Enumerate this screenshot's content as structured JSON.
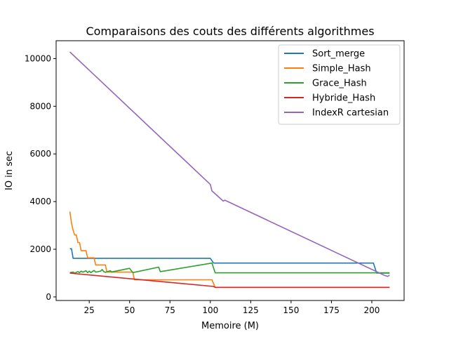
{
  "chart_data": {
    "type": "line",
    "title": "Comparaisons des couts des différents algorithmes",
    "xlabel": "Memoire (M)",
    "ylabel": "IO in sec",
    "xlim": [
      4.5,
      220
    ],
    "ylim": [
      -150,
      10750
    ],
    "xticks": [
      25,
      50,
      75,
      100,
      125,
      150,
      175,
      200
    ],
    "yticks": [
      0,
      2000,
      4000,
      6000,
      8000,
      10000
    ],
    "grid": false,
    "legend": "top-right",
    "series": [
      {
        "name": "Sort_merge",
        "color": "#1f77b4",
        "points": [
          [
            13,
            2020
          ],
          [
            14,
            2020
          ],
          [
            15,
            1620
          ],
          [
            100,
            1620
          ],
          [
            102,
            1420
          ],
          [
            201,
            1420
          ],
          [
            203,
            1000
          ],
          [
            211,
            1000
          ]
        ]
      },
      {
        "name": "Simple_Hash",
        "color": "#ff7f0e",
        "points": [
          [
            13,
            3580
          ],
          [
            14,
            3100
          ],
          [
            15,
            2800
          ],
          [
            16,
            2600
          ],
          [
            17,
            2600
          ],
          [
            18,
            2280
          ],
          [
            19,
            2280
          ],
          [
            20,
            1940
          ],
          [
            23,
            1940
          ],
          [
            24,
            1640
          ],
          [
            28,
            1640
          ],
          [
            29,
            1340
          ],
          [
            35,
            1340
          ],
          [
            36,
            1040
          ],
          [
            52,
            1040
          ],
          [
            53,
            720
          ],
          [
            101,
            720
          ],
          [
            103,
            400
          ],
          [
            211,
            400
          ]
        ]
      },
      {
        "name": "Grace_Hash",
        "color": "#2ca02c",
        "points": [
          [
            13,
            1020
          ],
          [
            15,
            1040
          ],
          [
            16,
            1000
          ],
          [
            18,
            1060
          ],
          [
            19,
            1020
          ],
          [
            20,
            1080
          ],
          [
            21,
            1040
          ],
          [
            23,
            1100
          ],
          [
            24,
            1020
          ],
          [
            25,
            1080
          ],
          [
            26,
            1020
          ],
          [
            28,
            1110
          ],
          [
            29,
            1040
          ],
          [
            32,
            1080
          ],
          [
            33,
            1150
          ],
          [
            34,
            1060
          ],
          [
            35,
            1030
          ],
          [
            38,
            1100
          ],
          [
            39,
            1050
          ],
          [
            50,
            1200
          ],
          [
            52,
            1020
          ],
          [
            68,
            1250
          ],
          [
            69,
            1060
          ],
          [
            101,
            1420
          ],
          [
            103,
            1010
          ],
          [
            211,
            1010
          ]
        ]
      },
      {
        "name": "Hybride_Hash",
        "color": "#d62728",
        "points": [
          [
            13,
            1000
          ],
          [
            102,
            440
          ],
          [
            103,
            400
          ],
          [
            211,
            400
          ]
        ]
      },
      {
        "name": "IndexR cartesian",
        "color": "#9467bd",
        "points": [
          [
            13,
            10280
          ],
          [
            100,
            4720
          ],
          [
            101,
            4450
          ],
          [
            108,
            4020
          ],
          [
            109,
            4060
          ],
          [
            208,
            900
          ],
          [
            210,
            860
          ],
          [
            211,
            920
          ]
        ]
      }
    ]
  }
}
